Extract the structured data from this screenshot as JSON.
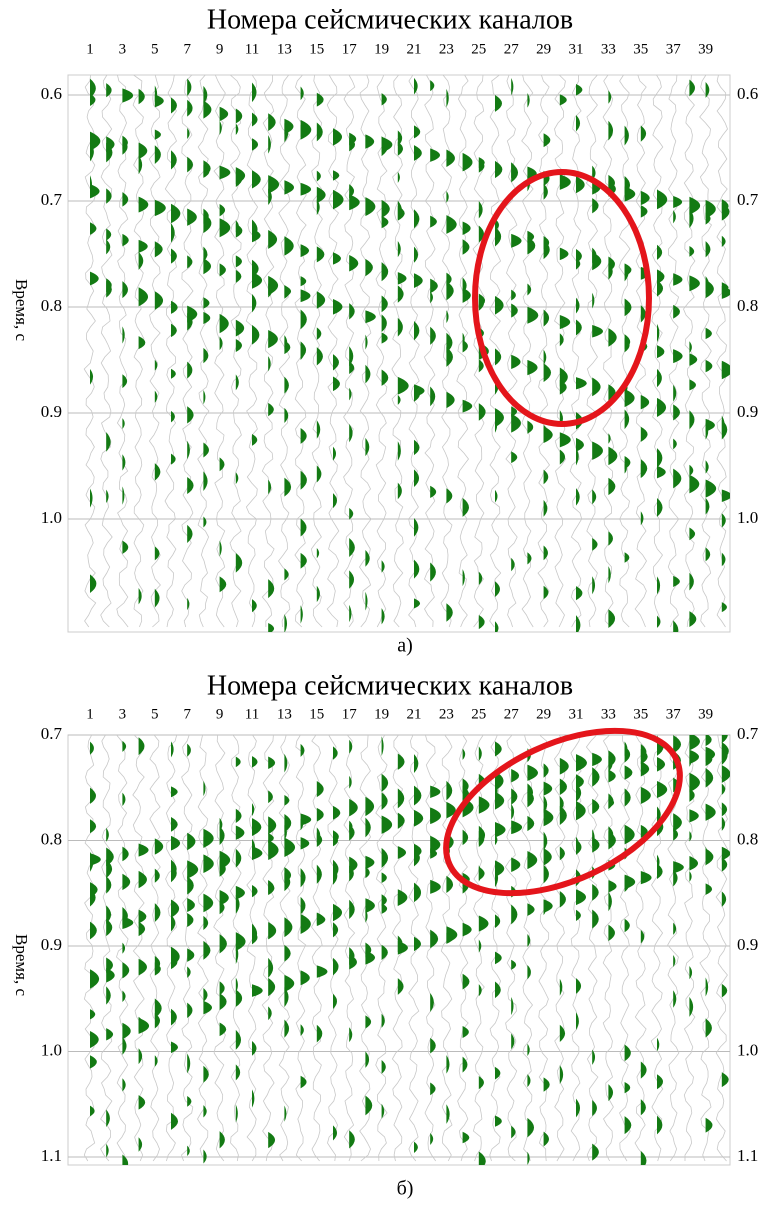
{
  "panels": [
    {
      "title": "Номера сейсмических каналов",
      "channels": [
        "1",
        "3",
        "5",
        "7",
        "9",
        "11",
        "13",
        "15",
        "17",
        "19",
        "21",
        "23",
        "25",
        "27",
        "29",
        "31",
        "33",
        "35",
        "37",
        "39"
      ],
      "time_ticks": [
        "0.6",
        "0.7",
        "0.8",
        "0.9",
        "1.0"
      ],
      "y_label": "Время, с",
      "caption": "а)"
    },
    {
      "title": "Номера сейсмических каналов",
      "channels": [
        "1",
        "3",
        "5",
        "7",
        "9",
        "11",
        "13",
        "15",
        "17",
        "19",
        "21",
        "23",
        "25",
        "27",
        "29",
        "31",
        "33",
        "35",
        "37",
        "39"
      ],
      "time_ticks": [
        "0.7",
        "0.8",
        "0.9",
        "1.0",
        "1.1"
      ],
      "y_label": "Время, с",
      "caption": "б)"
    }
  ]
}
